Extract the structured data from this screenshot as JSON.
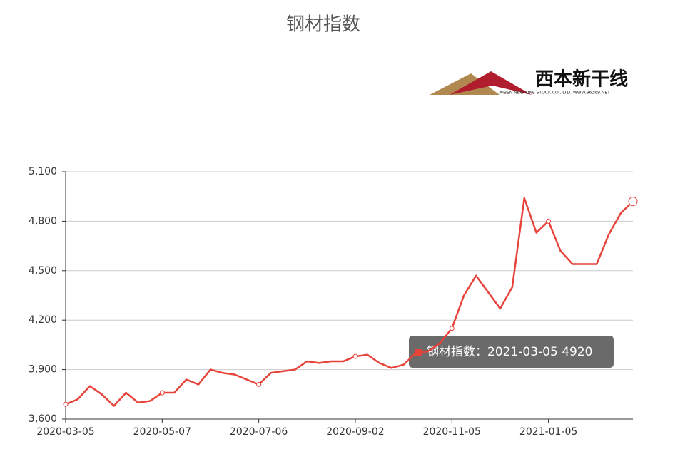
{
  "chart_data": {
    "type": "line",
    "title": "钢材指数",
    "logo": {
      "name": "西本新干线",
      "subtitle": "XIBEN NEW LINE STOCK CO., LTD.   WWW.96369.NET"
    },
    "categories": [
      "2020-03-05",
      null,
      null,
      null,
      null,
      null,
      null,
      null,
      "2020-05-07",
      null,
      null,
      null,
      null,
      null,
      null,
      null,
      "2020-07-06",
      null,
      null,
      null,
      null,
      null,
      null,
      null,
      "2020-09-02",
      null,
      null,
      null,
      null,
      null,
      null,
      null,
      "2020-11-05",
      null,
      null,
      null,
      null,
      null,
      null,
      null,
      "2021-01-05",
      null,
      null,
      null,
      null,
      null,
      null,
      null
    ],
    "series": [
      {
        "name": "钢材指数",
        "color": "#e8433a",
        "values": [
          3690,
          3720,
          3800,
          3750,
          3680,
          3760,
          3700,
          3710,
          3760,
          3760,
          3840,
          3810,
          3900,
          3880,
          3870,
          3840,
          3810,
          3880,
          3890,
          3900,
          3950,
          3940,
          3950,
          3950,
          3980,
          3990,
          3940,
          3910,
          3930,
          4000,
          4010,
          4060,
          4150,
          4350,
          4470,
          4370,
          4270,
          4400,
          4940,
          4730,
          4800,
          4620,
          4540,
          4540,
          4540,
          4720,
          4850,
          4920
        ]
      }
    ],
    "ylim": [
      3600,
      5100
    ],
    "yticks": [
      {
        "value": 3600,
        "label": "3,600"
      },
      {
        "value": 3900,
        "label": "3,900"
      },
      {
        "value": 4200,
        "label": "4,200"
      },
      {
        "value": 4500,
        "label": "4,500"
      },
      {
        "value": 4800,
        "label": "4,800"
      },
      {
        "value": 5100,
        "label": "5,100"
      }
    ],
    "grid": true,
    "tooltip": "钢材指数：2021-03-05 4920"
  }
}
